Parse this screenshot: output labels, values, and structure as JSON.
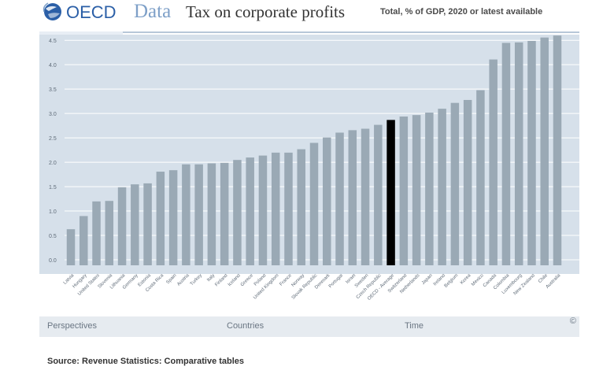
{
  "header": {
    "brand": "OECD",
    "section": "Data",
    "title": "Tax on corporate profits",
    "subtitle": "Total, % of GDP, 2020 or latest available"
  },
  "footer": {
    "perspectives": "Perspectives",
    "countries": "Countries",
    "time": "Time",
    "copyright": "©"
  },
  "source": "Source: Revenue Statistics: Comparative tables",
  "colors": {
    "bar": "#9aa9b5",
    "highlight": "#000000",
    "panel": "#d6e0ea",
    "grid": "#ffffff"
  },
  "chart_data": {
    "type": "bar",
    "title": "Tax on corporate profits",
    "subtitle": "Total, % of GDP, 2020 or latest available",
    "xlabel": "",
    "ylabel": "",
    "ylim": [
      0,
      4.6
    ],
    "yticks": [
      "0.0",
      "0.5",
      "1.0",
      "1.5",
      "2.0",
      "2.5",
      "3.0",
      "3.5",
      "4.0",
      "4.5"
    ],
    "grid": true,
    "highlight_category": "OECD - Average",
    "categories": [
      "Latvia",
      "Hungary",
      "United States",
      "Slovenia",
      "Lithuania",
      "Germany",
      "Estonia",
      "Costa Rica",
      "Spain",
      "Austria",
      "Turkey",
      "Italy",
      "Finland",
      "Iceland",
      "Greece",
      "Poland",
      "United Kingdom",
      "France",
      "Norway",
      "Slovak Republic",
      "Denmark",
      "Portugal",
      "Israel",
      "Sweden",
      "Czech Republic",
      "OECD - Average",
      "Switzerland",
      "Netherlands",
      "Japan",
      "Ireland",
      "Belgium",
      "Korea",
      "Mexico",
      "Canada",
      "Colombia",
      "Luxembourg",
      "New Zealand",
      "Chile",
      "Australia"
    ],
    "values": [
      0.74,
      1.01,
      1.31,
      1.32,
      1.6,
      1.66,
      1.68,
      1.92,
      1.95,
      2.07,
      2.07,
      2.09,
      2.1,
      2.16,
      2.21,
      2.25,
      2.31,
      2.31,
      2.38,
      2.51,
      2.62,
      2.72,
      2.77,
      2.8,
      2.88,
      2.98,
      3.05,
      3.08,
      3.13,
      3.21,
      3.33,
      3.39,
      3.59,
      4.22,
      4.56,
      4.57,
      4.6,
      4.67,
      4.71
    ]
  }
}
